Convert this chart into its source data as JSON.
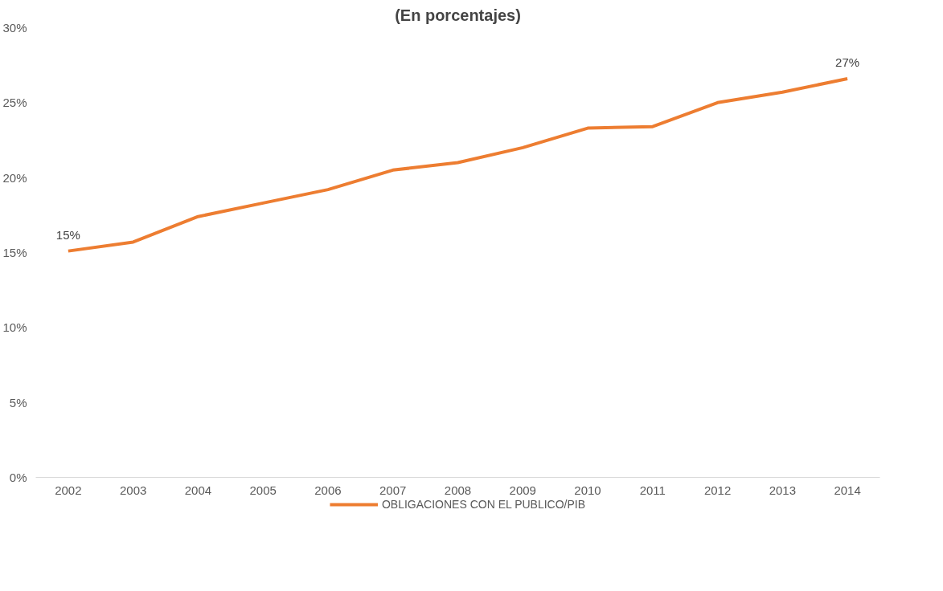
{
  "chart_data": {
    "type": "line",
    "title": "(En porcentajes)",
    "categories": [
      "2002",
      "2003",
      "2004",
      "2005",
      "2006",
      "2007",
      "2008",
      "2009",
      "2010",
      "2011",
      "2012",
      "2013",
      "2014"
    ],
    "series": [
      {
        "name": "OBLIGACIONES CON EL PUBLICO/PIB",
        "color": "#ed7d31",
        "values": [
          15.1,
          15.7,
          17.4,
          18.3,
          19.2,
          20.5,
          21.0,
          22.0,
          23.3,
          23.4,
          25.0,
          25.7,
          26.6
        ],
        "value_labels": [
          "15%",
          null,
          null,
          null,
          null,
          null,
          null,
          null,
          null,
          null,
          null,
          null,
          "27%"
        ]
      }
    ],
    "ylim": [
      0,
      30
    ],
    "yticks": [
      {
        "value": 0,
        "label": "0%"
      },
      {
        "value": 5,
        "label": "5%"
      },
      {
        "value": 10,
        "label": "10%"
      },
      {
        "value": 15,
        "label": "15%"
      },
      {
        "value": 20,
        "label": "20%"
      },
      {
        "value": 25,
        "label": "25%"
      },
      {
        "value": 30,
        "label": "30%"
      }
    ],
    "grid": false,
    "legend": "bottom",
    "marker": "none",
    "line_style": "solid"
  }
}
